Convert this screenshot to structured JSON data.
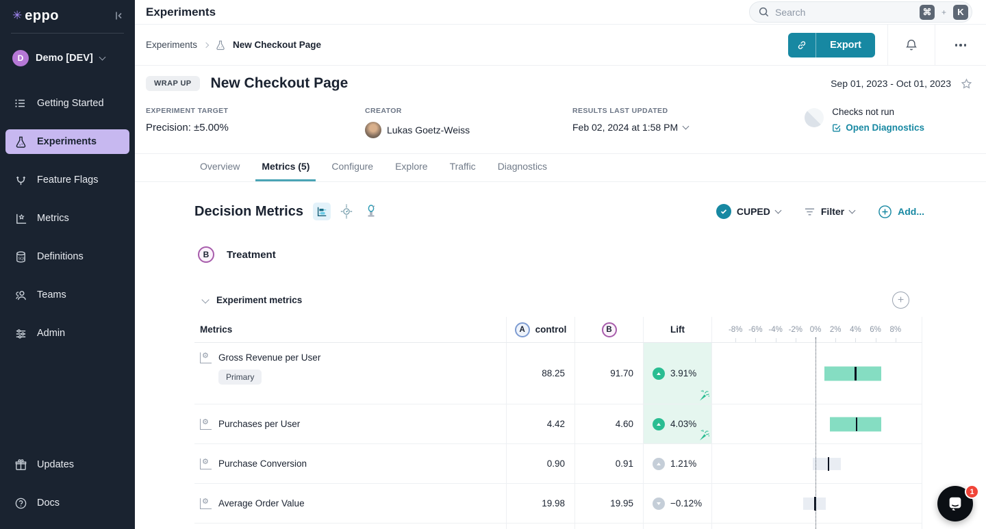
{
  "brand": {
    "logo_text": "eppo",
    "logo_mark": "✳",
    "accent": "#1788a2",
    "active_nav_bg": "#c7b8f0"
  },
  "sidebar": {
    "workspace": {
      "initial": "D",
      "name": "Demo [DEV]"
    },
    "items": [
      {
        "label": "Getting Started"
      },
      {
        "label": "Experiments"
      },
      {
        "label": "Feature Flags"
      },
      {
        "label": "Metrics"
      },
      {
        "label": "Definitions"
      },
      {
        "label": "Teams"
      },
      {
        "label": "Admin"
      }
    ],
    "footer_items": [
      {
        "label": "Updates"
      },
      {
        "label": "Docs"
      }
    ]
  },
  "topbar": {
    "title": "Experiments",
    "search": {
      "placeholder": "Search",
      "shortcut_keys": [
        "⌘",
        "K"
      ],
      "shortcut_separator": "+"
    }
  },
  "breadcrumb": {
    "root": "Experiments",
    "current": "New Checkout Page",
    "export_label": "Export"
  },
  "experiment": {
    "status_badge": "WRAP UP",
    "title": "New Checkout Page",
    "date_range": "Sep 01, 2023 - Oct 01, 2023",
    "target_label": "EXPERIMENT TARGET",
    "target_value": "Precision: ±5.00%",
    "creator_label": "CREATOR",
    "creator_name": "Lukas Goetz-Weiss",
    "updated_label": "RESULTS LAST UPDATED",
    "updated_value": "Feb 02, 2024 at 1:58 PM",
    "checks_status": "Checks not run",
    "diagnostics_link": "Open Diagnostics"
  },
  "tabs": [
    {
      "label": "Overview",
      "active": false
    },
    {
      "label": "Metrics (5)",
      "active": true
    },
    {
      "label": "Configure",
      "active": false
    },
    {
      "label": "Explore",
      "active": false
    },
    {
      "label": "Traffic",
      "active": false
    },
    {
      "label": "Diagnostics",
      "active": false
    }
  ],
  "metrics_section": {
    "title": "Decision Metrics",
    "cuped_label": "CUPED",
    "filter_label": "Filter",
    "add_label": "Add...",
    "variation": {
      "badge": "B",
      "name": "Treatment"
    },
    "group_title": "Experiment metrics"
  },
  "table": {
    "metrics_header": "Metrics",
    "control_badge": "A",
    "control_label": "control",
    "treatment_badge": "B",
    "lift_header": "Lift",
    "axis_ticks": [
      {
        "label": "-8%",
        "value": -8
      },
      {
        "label": "-6%",
        "value": -6
      },
      {
        "label": "-4%",
        "value": -4
      },
      {
        "label": "-2%",
        "value": -2
      },
      {
        "label": "0%",
        "value": 0
      },
      {
        "label": "2%",
        "value": 2
      },
      {
        "label": "4%",
        "value": 4
      },
      {
        "label": "6%",
        "value": 6
      },
      {
        "label": "8%",
        "value": 8
      }
    ],
    "rows": [
      {
        "name": "Gross Revenue per User",
        "tag": "Primary",
        "control": "88.25",
        "treatment": "91.70",
        "lift": "3.91%",
        "direction": "up",
        "significant": true,
        "ci_low": 0.9,
        "ci_high": 6.6,
        "mean": 3.91
      },
      {
        "name": "Purchases per User",
        "tag": "",
        "control": "4.42",
        "treatment": "4.60",
        "lift": "4.03%",
        "direction": "up",
        "significant": true,
        "ci_low": 1.45,
        "ci_high": 6.6,
        "mean": 4.03
      },
      {
        "name": "Purchase Conversion",
        "tag": "",
        "control": "0.90",
        "treatment": "0.91",
        "lift": "1.21%",
        "direction": "up",
        "significant": false,
        "ci_low": -0.25,
        "ci_high": 2.55,
        "mean": 1.21
      },
      {
        "name": "Average Order Value",
        "tag": "",
        "control": "19.98",
        "treatment": "19.95",
        "lift": "−0.12%",
        "direction": "down",
        "significant": false,
        "ci_low": -1.25,
        "ci_high": 1.0,
        "mean": -0.12
      }
    ]
  },
  "intercom": {
    "unread_count": "1"
  },
  "colors": {
    "positive": "#2abd92",
    "positive_bg": "#e5f6ef",
    "bar_green": "#85ddc2",
    "bar_gray": "#e9edf3",
    "sidebar_bg": "#1a2330"
  }
}
